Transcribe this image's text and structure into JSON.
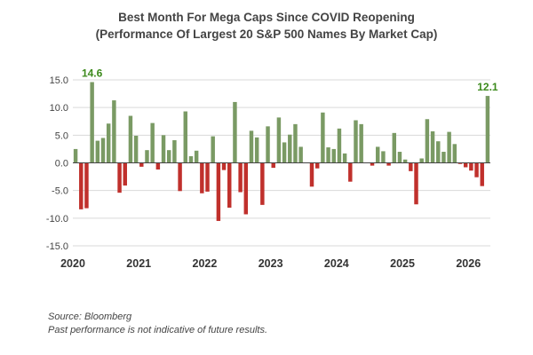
{
  "title": "Best Month For Mega Caps Since COVID Reopening",
  "subtitle": "(Performance Of Largest 20 S&P 500 Names By Market Cap)",
  "source": "Source: Bloomberg",
  "disclaimer": "Past performance is not indicative of future results.",
  "colors": {
    "positive": "#7a9a64",
    "negative": "#c0302c",
    "annotation": "#3c8a1c"
  },
  "chart_data": {
    "type": "bar",
    "title": "Best Month For Mega Caps Since COVID Reopening",
    "subtitle": "(Performance Of Largest 20 S&P 500 Names By Market Cap)",
    "xlabel": "",
    "ylabel": "",
    "ylim": [
      -15,
      15
    ],
    "yticks": [
      "15.0",
      "10.0",
      "5.0",
      "0.0",
      "-5.0",
      "-10.0",
      "-15.0"
    ],
    "xticks": [
      "2020",
      "2021",
      "2022",
      "2023",
      "2024",
      "2025",
      "2026"
    ],
    "grid": true,
    "start": "2020-01",
    "values": [
      2.5,
      -8.4,
      -8.2,
      14.6,
      4.0,
      4.5,
      7.1,
      11.3,
      -5.4,
      -4.1,
      8.5,
      4.9,
      -0.7,
      2.3,
      7.2,
      -1.2,
      5.0,
      2.3,
      4.1,
      -5.1,
      9.3,
      1.2,
      2.2,
      -5.5,
      -5.2,
      4.8,
      -10.5,
      -1.3,
      -8.1,
      11.0,
      -5.3,
      -9.3,
      5.8,
      4.6,
      -7.6,
      6.6,
      -0.9,
      8.2,
      3.7,
      5.1,
      7.0,
      2.9,
      0.0,
      -4.3,
      -1.0,
      9.1,
      2.8,
      2.5,
      6.2,
      1.7,
      -3.4,
      7.7,
      7.0,
      0.0,
      -0.5,
      2.9,
      2.1,
      -0.5,
      5.4,
      2.0,
      0.6,
      -1.5,
      -7.5,
      0.8,
      7.9,
      5.7,
      3.9,
      2.0,
      5.6,
      3.4,
      -0.2,
      -0.8,
      -1.4,
      -2.6,
      -4.2,
      12.1
    ],
    "annotations": [
      {
        "label": "14.6",
        "index": 3,
        "value": 14.6
      },
      {
        "label": "12.1",
        "index": 75,
        "value": 12.1
      }
    ]
  }
}
